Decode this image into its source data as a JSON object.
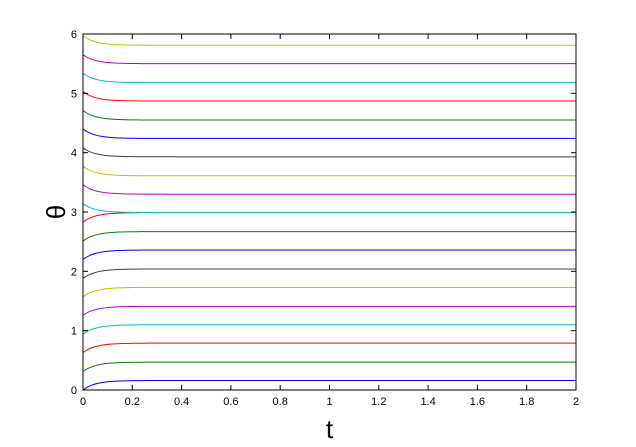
{
  "chart_data": {
    "type": "line",
    "title": "",
    "xlabel": "t",
    "ylabel": "θ",
    "xlim": [
      0,
      2
    ],
    "ylim": [
      0,
      6
    ],
    "xticks": [
      0,
      0.2,
      0.4,
      0.6,
      0.8,
      1,
      1.2,
      1.4,
      1.6,
      1.8,
      2
    ],
    "xtick_labels": [
      "0",
      "0.2",
      "0.4",
      "0.6",
      "0.8",
      "1",
      "1.2",
      "1.4",
      "1.6",
      "1.8",
      "2"
    ],
    "yticks": [
      0,
      1,
      2,
      3,
      4,
      5,
      6
    ],
    "ytick_labels": [
      "0",
      "1",
      "2",
      "3",
      "4",
      "5",
      "6"
    ],
    "grid": false,
    "legend": "none",
    "series": [
      {
        "color": "#0000ff",
        "start": 0.0,
        "final": 0.16,
        "t_end": 2
      },
      {
        "color": "#007f00",
        "start": 0.31,
        "final": 0.47,
        "t_end": 2
      },
      {
        "color": "#ff0000",
        "start": 0.63,
        "final": 0.79,
        "t_end": 2
      },
      {
        "color": "#00bfbf",
        "start": 0.94,
        "final": 1.1,
        "t_end": 2
      },
      {
        "color": "#bf00bf",
        "start": 1.26,
        "final": 1.41,
        "t_end": 2
      },
      {
        "color": "#bfbf00",
        "start": 1.57,
        "final": 1.73,
        "t_end": 2
      },
      {
        "color": "#3f3f3f",
        "start": 1.88,
        "final": 2.04,
        "t_end": 2
      },
      {
        "color": "#0000ff",
        "start": 2.2,
        "final": 2.36,
        "t_end": 2
      },
      {
        "color": "#007f00",
        "start": 2.51,
        "final": 2.67,
        "t_end": 2
      },
      {
        "color": "#ff0000",
        "start": 2.83,
        "final": 2.99,
        "t_end": 0.23
      },
      {
        "color": "#00bfbf",
        "start": 3.14,
        "final": 2.99,
        "t_end": 2
      },
      {
        "color": "#bf00bf",
        "start": 3.46,
        "final": 3.3,
        "t_end": 2
      },
      {
        "color": "#bfbf00",
        "start": 3.77,
        "final": 3.61,
        "t_end": 2
      },
      {
        "color": "#3f3f3f",
        "start": 4.08,
        "final": 3.93,
        "t_end": 2
      },
      {
        "color": "#0000ff",
        "start": 4.4,
        "final": 4.24,
        "t_end": 2
      },
      {
        "color": "#007f00",
        "start": 4.71,
        "final": 4.55,
        "t_end": 2
      },
      {
        "color": "#ff0000",
        "start": 5.03,
        "final": 4.87,
        "t_end": 2
      },
      {
        "color": "#00bfbf",
        "start": 5.34,
        "final": 5.18,
        "t_end": 2
      },
      {
        "color": "#bf00bf",
        "start": 5.65,
        "final": 5.5,
        "t_end": 2
      },
      {
        "color": "#bfbf00",
        "start": 5.97,
        "final": 5.81,
        "t_end": 2
      }
    ]
  }
}
